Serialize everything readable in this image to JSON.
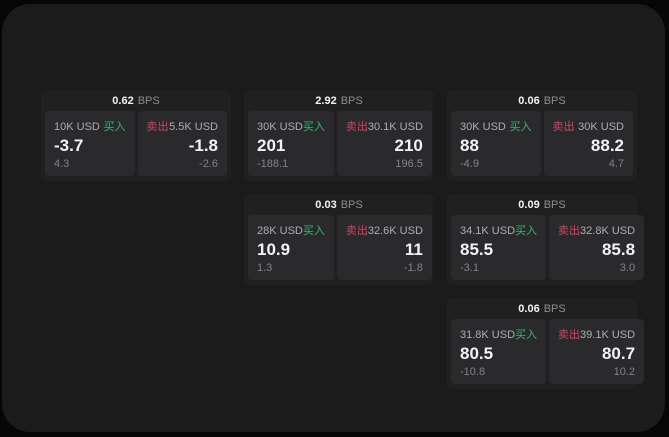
{
  "theme": {
    "page_background": "#060606",
    "panel_background": "#1b1b1c",
    "card_background": "#202021",
    "subpanel_background": "#2a2a2c",
    "buy_color": "#3eb370",
    "sell_color": "#cd4660"
  },
  "labels": {
    "bps_unit": "BPS",
    "buy": "买入",
    "sell": "卖出"
  },
  "cards": [
    {
      "bps": "0.62",
      "buy": {
        "size": "10K USD",
        "price": "-3.7",
        "sub": "4.3"
      },
      "sell": {
        "size": "5.5K USD",
        "price": "-1.8",
        "sub": "-2.6"
      }
    },
    {
      "bps": "2.92",
      "buy": {
        "size": "30K USD",
        "price": "201",
        "sub": "-188.1"
      },
      "sell": {
        "size": "30.1K USD",
        "price": "210",
        "sub": "196.5"
      }
    },
    {
      "bps": "0.06",
      "buy": {
        "size": "30K USD",
        "price": "88",
        "sub": "-4.9"
      },
      "sell": {
        "size": "30K USD",
        "price": "88.2",
        "sub": "4.7"
      }
    },
    {
      "bps": "0.03",
      "buy": {
        "size": "28K USD",
        "price": "10.9",
        "sub": "1.3"
      },
      "sell": {
        "size": "32.6K USD",
        "price": "11",
        "sub": "-1.8"
      }
    },
    {
      "bps": "0.09",
      "buy": {
        "size": "34.1K USD",
        "price": "85.5",
        "sub": "-3.1"
      },
      "sell": {
        "size": "32.8K USD",
        "price": "85.8",
        "sub": "3.0"
      }
    },
    {
      "bps": "0.06",
      "buy": {
        "size": "31.8K USD",
        "price": "80.5",
        "sub": "-10.8"
      },
      "sell": {
        "size": "39.1K USD",
        "price": "80.7",
        "sub": "10.2"
      }
    }
  ]
}
